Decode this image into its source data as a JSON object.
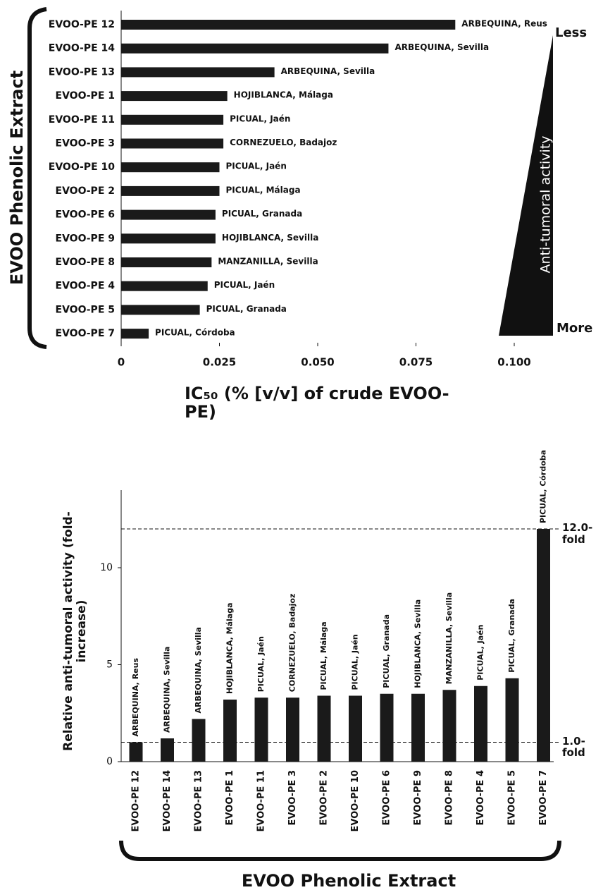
{
  "chart_data": [
    {
      "type": "barh",
      "ylabel": "EVOO Phenolic Extract",
      "xlabel": "IC₅₀ (% [v/v] of crude EVOO-PE)",
      "categories": [
        "EVOO-PE 12",
        "EVOO-PE 14",
        "EVOO-PE 13",
        "EVOO-PE 1",
        "EVOO-PE 11",
        "EVOO-PE 3",
        "EVOO-PE 10",
        "EVOO-PE 2",
        "EVOO-PE 6",
        "EVOO-PE 9",
        "EVOO-PE 8",
        "EVOO-PE 4",
        "EVOO-PE 5",
        "EVOO-PE 7"
      ],
      "values": [
        0.085,
        0.068,
        0.039,
        0.027,
        0.026,
        0.026,
        0.025,
        0.025,
        0.024,
        0.024,
        0.023,
        0.022,
        0.02,
        0.007
      ],
      "bar_labels": [
        "ARBEQUINA, Reus",
        "ARBEQUINA, Sevilla",
        "ARBEQUINA, Sevilla",
        "HOJIBLANCA, Málaga",
        "PICUAL, Jaén",
        "CORNEZUELO, Badajoz",
        "PICUAL, Jaén",
        "PICUAL, Málaga",
        "PICUAL, Granada",
        "HOJIBLANCA, Sevilla",
        "MANZANILLA, Sevilla",
        "PICUAL, Jaén",
        "PICUAL, Granada",
        "PICUAL, Córdoba"
      ],
      "color": "#1a1a1a",
      "xlim": [
        0,
        0.1
      ],
      "xticks": [
        0,
        0.025,
        {
          "value": 0.05,
          "label": "0.050"
        },
        0.075,
        {
          "value": 0.1,
          "label": "0.100"
        }
      ],
      "annotation": {
        "text": "Anti-tumoral activity",
        "top": "Less",
        "bottom": "More"
      }
    },
    {
      "type": "bar",
      "ylabel": "Relative anti-tumoral activity (fold-increase)",
      "xlabel": "EVOO Phenolic Extract",
      "categories": [
        "EVOO-PE 12",
        "EVOO-PE 14",
        "EVOO-PE 13",
        "EVOO-PE 1",
        "EVOO-PE 11",
        "EVOO-PE 3",
        "EVOO-PE 2",
        "EVOO-PE 10",
        "EVOO-PE 6",
        "EVOO-PE 9",
        "EVOO-PE 8",
        "EVOO-PE 4",
        "EVOO-PE 5",
        "EVOO-PE 7"
      ],
      "values": [
        1.0,
        1.2,
        2.2,
        3.2,
        3.3,
        3.3,
        3.4,
        3.4,
        3.5,
        3.5,
        3.7,
        3.9,
        4.3,
        12.0
      ],
      "bar_labels": [
        "ARBEQUINA, Reus",
        "ARBEQUINA, Sevilla",
        "ARBEQUINA, Sevilla",
        "HOJIBLANCA, Málaga",
        "PICUAL, Jaén",
        "CORNEZUELO, Badajoz",
        "PICUAL, Málaga",
        "PICUAL, Jaén",
        "PICUAL, Granada",
        "HOJIBLANCA, Sevilla",
        "MANZANILLA, Sevilla",
        "PICUAL, Jaén",
        "PICUAL, Granada",
        "PICUAL, Córdoba"
      ],
      "color": "#1a1a1a",
      "ylim": [
        0,
        14
      ],
      "yticks": [
        0,
        5,
        10
      ],
      "reference_lines": [
        {
          "value": 12.0,
          "label": "12.0-fold"
        },
        {
          "value": 1.0,
          "label": "1.0-fold"
        }
      ]
    }
  ]
}
